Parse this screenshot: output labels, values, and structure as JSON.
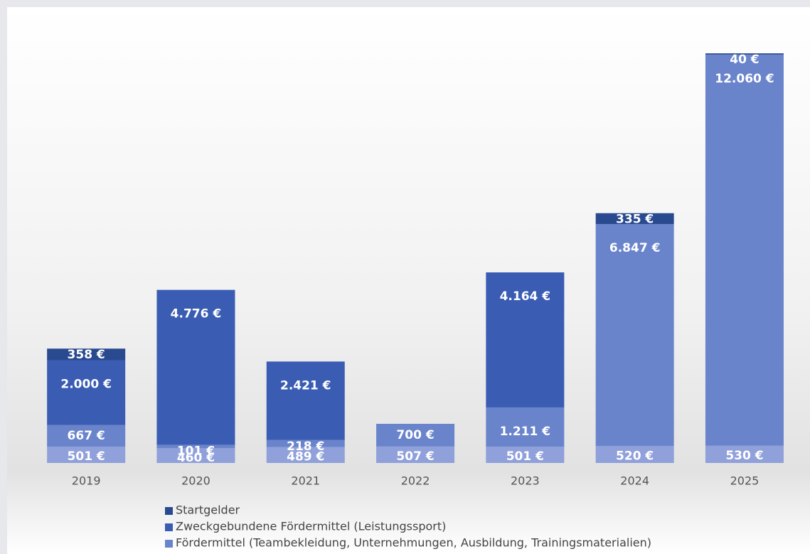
{
  "chart_data": {
    "type": "stacked_bar",
    "categories": [
      "2019",
      "2020",
      "2021",
      "2022",
      "2023",
      "2024",
      "2025"
    ],
    "series": [
      {
        "color": "#8fa0da",
        "values": [
          501,
          460,
          489,
          507,
          501,
          520,
          530
        ],
        "value_labels": [
          "501 €",
          "460 €",
          "489 €",
          "507 €",
          "501 €",
          "520 €",
          "530 €"
        ]
      },
      {
        "name": "Fördermittel (Teambekleidung, Unternehmungen, Ausbildung, Trainingsmaterialien)",
        "color": "#6a84cc",
        "values": [
          667,
          101,
          218,
          700,
          1211,
          6847,
          12060
        ],
        "value_labels": [
          "667 €",
          "101 €",
          "218 €",
          "700 €",
          "1.211 €",
          "6.847 €",
          "12.060 €"
        ]
      },
      {
        "name": "Zweckgebundene Fördermittel (Leistungssport)",
        "color": "#3a5cb3",
        "values": [
          2000,
          4776,
          2421,
          null,
          4164,
          null,
          null
        ],
        "value_labels": [
          "2.000 €",
          "4.776 €",
          "2.421 €",
          null,
          "4.164 €",
          null,
          null
        ]
      },
      {
        "name": "Startgelder",
        "color": "#2a4a90",
        "values": [
          358,
          null,
          null,
          null,
          null,
          335,
          40
        ],
        "value_labels": [
          "358 €",
          null,
          null,
          null,
          null,
          "335 €",
          "40 €"
        ]
      }
    ],
    "legend_order": [
      3,
      2,
      1
    ]
  }
}
